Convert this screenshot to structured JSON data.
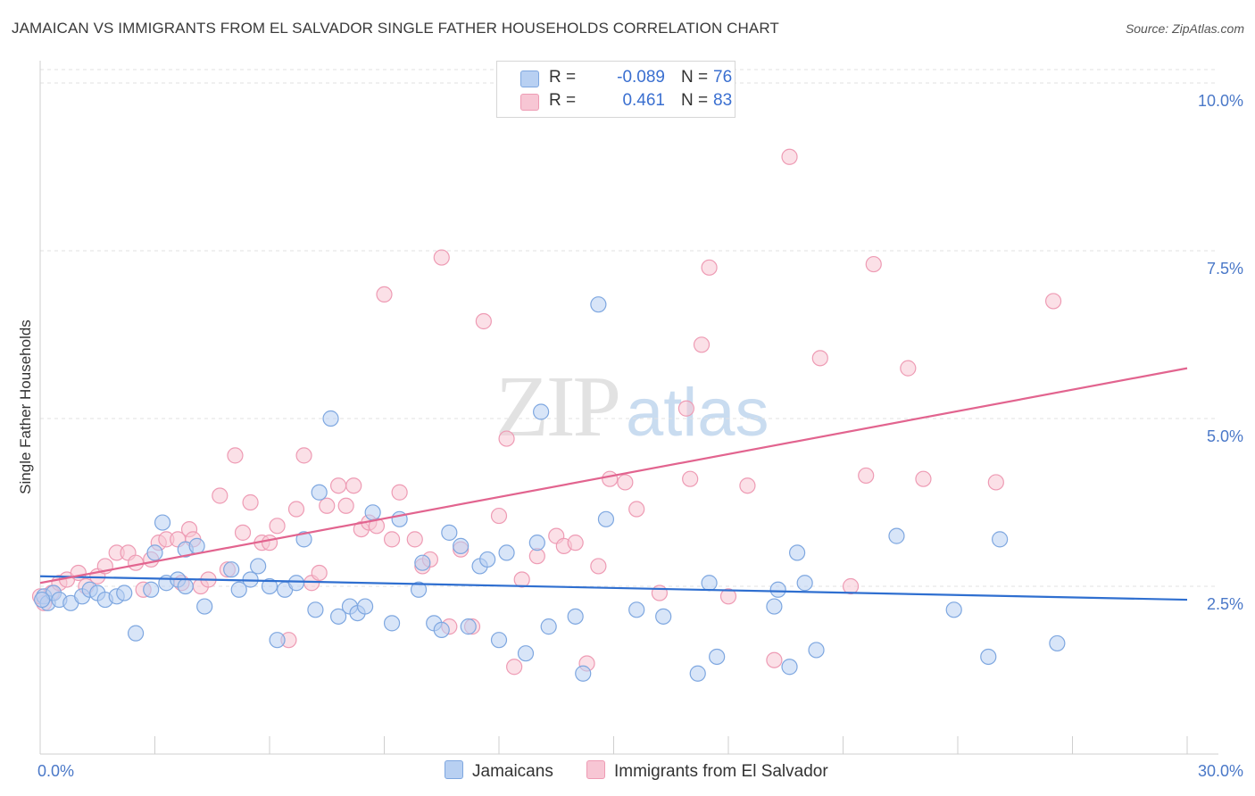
{
  "title": "JAMAICAN VS IMMIGRANTS FROM EL SALVADOR SINGLE FATHER HOUSEHOLDS CORRELATION CHART",
  "source": "Source: ZipAtlas.com",
  "watermark": {
    "zip": "ZIP",
    "atlas": "atlas"
  },
  "legend": {
    "series1": {
      "r_label": "R =",
      "r_value": "-0.089",
      "n_label": "N =",
      "n_value": "76"
    },
    "series2": {
      "r_label": "R =",
      "r_value": "0.461",
      "n_label": "N =",
      "n_value": "83"
    }
  },
  "colors": {
    "jamaicans_fill": "#b8d0f2",
    "jamaicans_stroke": "#7ea7e0",
    "jamaicans_line": "#2f6fd0",
    "elsalvador_fill": "#f7c6d4",
    "elsalvador_stroke": "#ee9bb4",
    "elsalvador_line": "#e2648f",
    "tick_text": "#4a78c8"
  },
  "chart_data": {
    "type": "scatter",
    "title": "JAMAICAN VS IMMIGRANTS FROM EL SALVADOR SINGLE FATHER HOUSEHOLDS CORRELATION CHART",
    "xlabel": "",
    "ylabel": "Single Father Households",
    "xlim": [
      0,
      30
    ],
    "ylim": [
      0,
      10.2
    ],
    "x_tick_labels": [
      "0.0%",
      "30.0%"
    ],
    "y_ticks": [
      2.5,
      5.0,
      7.5,
      10.0
    ],
    "y_tick_labels": [
      "2.5%",
      "5.0%",
      "7.5%",
      "10.0%"
    ],
    "grid": "horizontal dashed",
    "legend_position": "top-center",
    "series": [
      {
        "name": "Jamaicans",
        "R": -0.089,
        "N": 76,
        "trend": {
          "x": [
            0,
            30
          ],
          "y": [
            2.65,
            2.3
          ]
        },
        "points": [
          [
            0.1,
            2.35
          ],
          [
            0.2,
            2.25
          ],
          [
            0.35,
            2.4
          ],
          [
            0.5,
            2.3
          ],
          [
            0.8,
            2.25
          ],
          [
            1.1,
            2.35
          ],
          [
            1.3,
            2.45
          ],
          [
            1.5,
            2.4
          ],
          [
            1.7,
            2.3
          ],
          [
            2.0,
            2.35
          ],
          [
            2.2,
            2.4
          ],
          [
            2.5,
            1.8
          ],
          [
            2.9,
            2.45
          ],
          [
            3.0,
            3.0
          ],
          [
            3.2,
            3.45
          ],
          [
            3.3,
            2.55
          ],
          [
            3.6,
            2.6
          ],
          [
            3.8,
            2.5
          ],
          [
            3.8,
            3.05
          ],
          [
            4.1,
            3.1
          ],
          [
            4.3,
            2.2
          ],
          [
            5.0,
            2.75
          ],
          [
            5.2,
            2.45
          ],
          [
            5.5,
            2.6
          ],
          [
            5.7,
            2.8
          ],
          [
            6.0,
            2.5
          ],
          [
            6.2,
            1.7
          ],
          [
            6.4,
            2.45
          ],
          [
            6.7,
            2.55
          ],
          [
            6.9,
            3.2
          ],
          [
            7.2,
            2.15
          ],
          [
            7.3,
            3.9
          ],
          [
            7.6,
            5.0
          ],
          [
            7.8,
            2.05
          ],
          [
            8.1,
            2.2
          ],
          [
            8.3,
            2.1
          ],
          [
            8.5,
            2.2
          ],
          [
            8.7,
            3.6
          ],
          [
            9.2,
            1.95
          ],
          [
            9.4,
            3.5
          ],
          [
            9.9,
            2.45
          ],
          [
            10.0,
            2.85
          ],
          [
            10.3,
            1.95
          ],
          [
            10.5,
            1.85
          ],
          [
            10.7,
            3.3
          ],
          [
            11.0,
            3.1
          ],
          [
            11.2,
            1.9
          ],
          [
            11.5,
            2.8
          ],
          [
            11.7,
            2.9
          ],
          [
            12.0,
            1.7
          ],
          [
            12.2,
            3.0
          ],
          [
            12.7,
            1.5
          ],
          [
            13.0,
            3.15
          ],
          [
            13.1,
            5.1
          ],
          [
            13.3,
            1.9
          ],
          [
            14.0,
            2.05
          ],
          [
            14.2,
            1.2
          ],
          [
            14.6,
            6.7
          ],
          [
            14.8,
            3.5
          ],
          [
            15.6,
            2.15
          ],
          [
            16.3,
            2.05
          ],
          [
            17.2,
            1.2
          ],
          [
            17.5,
            2.55
          ],
          [
            17.7,
            1.45
          ],
          [
            19.2,
            2.2
          ],
          [
            19.3,
            2.45
          ],
          [
            19.6,
            1.3
          ],
          [
            19.8,
            3.0
          ],
          [
            20.0,
            2.55
          ],
          [
            20.3,
            1.55
          ],
          [
            22.4,
            3.25
          ],
          [
            23.9,
            2.15
          ],
          [
            24.8,
            1.45
          ],
          [
            25.1,
            3.2
          ],
          [
            26.6,
            1.65
          ],
          [
            0.05,
            2.3
          ]
        ]
      },
      {
        "name": "Immigrants from El Salvador",
        "R": 0.461,
        "N": 83,
        "trend": {
          "x": [
            0,
            30
          ],
          "y": [
            2.55,
            5.75
          ]
        },
        "points": [
          [
            0.1,
            2.25
          ],
          [
            0.3,
            2.4
          ],
          [
            0.5,
            2.55
          ],
          [
            0.7,
            2.6
          ],
          [
            1.0,
            2.7
          ],
          [
            1.2,
            2.5
          ],
          [
            1.5,
            2.65
          ],
          [
            1.7,
            2.8
          ],
          [
            2.0,
            3.0
          ],
          [
            2.3,
            3.0
          ],
          [
            2.5,
            2.85
          ],
          [
            2.7,
            2.45
          ],
          [
            2.9,
            2.9
          ],
          [
            3.1,
            3.15
          ],
          [
            3.3,
            3.2
          ],
          [
            3.6,
            3.2
          ],
          [
            3.7,
            2.55
          ],
          [
            3.9,
            3.35
          ],
          [
            4.0,
            3.2
          ],
          [
            4.2,
            2.5
          ],
          [
            4.4,
            2.6
          ],
          [
            4.7,
            3.85
          ],
          [
            4.9,
            2.75
          ],
          [
            5.1,
            4.45
          ],
          [
            5.3,
            3.3
          ],
          [
            5.5,
            3.75
          ],
          [
            5.8,
            3.15
          ],
          [
            6.0,
            3.15
          ],
          [
            6.2,
            3.4
          ],
          [
            6.5,
            1.7
          ],
          [
            6.7,
            3.65
          ],
          [
            6.9,
            4.45
          ],
          [
            7.1,
            2.55
          ],
          [
            7.3,
            2.7
          ],
          [
            7.5,
            3.7
          ],
          [
            7.8,
            4.0
          ],
          [
            8.0,
            3.7
          ],
          [
            8.2,
            4.0
          ],
          [
            8.4,
            3.35
          ],
          [
            8.6,
            3.45
          ],
          [
            8.8,
            3.4
          ],
          [
            9.0,
            6.85
          ],
          [
            9.2,
            3.2
          ],
          [
            9.4,
            3.9
          ],
          [
            9.8,
            3.2
          ],
          [
            10.0,
            2.8
          ],
          [
            10.2,
            2.9
          ],
          [
            10.5,
            7.4
          ],
          [
            10.7,
            1.9
          ],
          [
            11.0,
            3.05
          ],
          [
            11.3,
            1.9
          ],
          [
            11.6,
            6.45
          ],
          [
            12.0,
            3.55
          ],
          [
            12.2,
            4.7
          ],
          [
            12.4,
            1.3
          ],
          [
            12.6,
            2.6
          ],
          [
            13.0,
            2.95
          ],
          [
            13.5,
            3.25
          ],
          [
            13.7,
            3.1
          ],
          [
            14.0,
            3.15
          ],
          [
            14.3,
            1.35
          ],
          [
            14.6,
            2.8
          ],
          [
            14.9,
            4.1
          ],
          [
            15.3,
            4.05
          ],
          [
            15.6,
            3.65
          ],
          [
            16.2,
            2.4
          ],
          [
            16.9,
            5.15
          ],
          [
            17.0,
            4.1
          ],
          [
            17.3,
            6.1
          ],
          [
            17.5,
            7.25
          ],
          [
            18.0,
            2.35
          ],
          [
            18.5,
            4.0
          ],
          [
            19.2,
            1.4
          ],
          [
            19.6,
            8.9
          ],
          [
            20.4,
            5.9
          ],
          [
            21.2,
            2.5
          ],
          [
            21.6,
            4.15
          ],
          [
            21.8,
            7.3
          ],
          [
            22.7,
            5.75
          ],
          [
            23.1,
            4.1
          ],
          [
            25.0,
            4.05
          ],
          [
            26.5,
            6.75
          ],
          [
            0.0,
            2.35
          ]
        ]
      }
    ]
  },
  "y_axis_label": "Single Father Households",
  "bottom_legend": {
    "series1": "Jamaicans",
    "series2": "Immigrants from El Salvador"
  }
}
